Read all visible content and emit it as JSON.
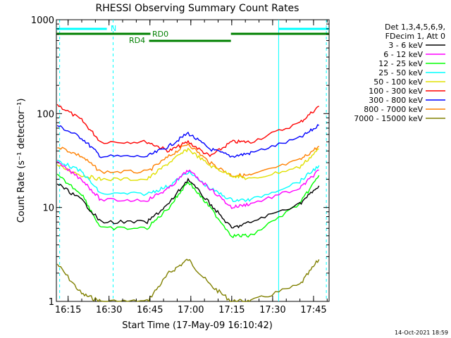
{
  "chart_data": {
    "type": "line",
    "title": "RHESSI Observing Summary Count Rates",
    "xlabel": "Start Time (17-May-09 16:10:42)",
    "ylabel": "Count Rate (s⁻¹ detector⁻¹)",
    "y_scale": "log",
    "ylim": [
      1,
      1000
    ],
    "xlim_minutes_after_start": [
      0,
      100
    ],
    "y_ticks": [
      "1",
      "10",
      "100",
      "1000"
    ],
    "x_ticks": [
      {
        "label": "16:15",
        "minute": 4.3
      },
      {
        "label": "16:30",
        "minute": 19.3
      },
      {
        "label": "16:45",
        "minute": 34.3
      },
      {
        "label": "17:00",
        "minute": 49.3
      },
      {
        "label": "17:15",
        "minute": 64.3
      },
      {
        "label": "17:30",
        "minute": 79.3
      },
      {
        "label": "17:45",
        "minute": 94.3
      }
    ],
    "legend": {
      "header": [
        "Det 1,3,4,5,6,9,",
        "FDecim 1, Att 0"
      ],
      "placement": "right"
    },
    "time_points": [
      "16:11",
      "16:20",
      "16:27",
      "16:44",
      "16:52",
      "16:59",
      "17:07",
      "17:15",
      "17:22",
      "17:40",
      "17:47"
    ],
    "series": [
      {
        "name": "3 - 6 keV",
        "color": "#000000",
        "values": [
          18,
          12,
          7,
          7,
          11,
          20,
          11,
          6,
          7,
          11,
          17
        ]
      },
      {
        "name": "6 - 12 keV",
        "color": "#ff00ff",
        "values": [
          30,
          20,
          12,
          12,
          16,
          25,
          16,
          10,
          11,
          16,
          25
        ]
      },
      {
        "name": "12 - 25 keV",
        "color": "#00ff00",
        "values": [
          22,
          14,
          6,
          6,
          10,
          19,
          10,
          5,
          5,
          11,
          22
        ]
      },
      {
        "name": "25 - 50 keV",
        "color": "#00ffff",
        "values": [
          32,
          24,
          14,
          14,
          17,
          24,
          16,
          12,
          12,
          19,
          28
        ]
      },
      {
        "name": "50 - 100 keV",
        "color": "#e0e000",
        "values": [
          28,
          22,
          20,
          20,
          30,
          42,
          28,
          22,
          20,
          27,
          42
        ]
      },
      {
        "name": "100 - 300 keV",
        "color": "#ff0000",
        "values": [
          125,
          85,
          50,
          50,
          40,
          50,
          35,
          50,
          50,
          80,
          120
        ]
      },
      {
        "name": "300 - 800 keV",
        "color": "#0000ff",
        "values": [
          75,
          55,
          35,
          35,
          45,
          62,
          42,
          35,
          38,
          55,
          75
        ]
      },
      {
        "name": "800 - 7000 keV",
        "color": "#ff8000",
        "values": [
          45,
          35,
          24,
          24,
          35,
          48,
          30,
          22,
          22,
          32,
          45
        ]
      },
      {
        "name": "7000 - 15000 keV",
        "color": "#808000",
        "values": [
          2.5,
          1.2,
          1,
          1,
          2.0,
          2.8,
          1.5,
          1,
          1,
          1.5,
          2.8
        ]
      }
    ],
    "annotations": [
      {
        "text": "N",
        "color": "#00ffff"
      },
      {
        "text": "RD0",
        "color": "#008000"
      },
      {
        "text": "RD4",
        "color": "#008000"
      }
    ],
    "footer": "14-Oct-2021 18:59"
  }
}
